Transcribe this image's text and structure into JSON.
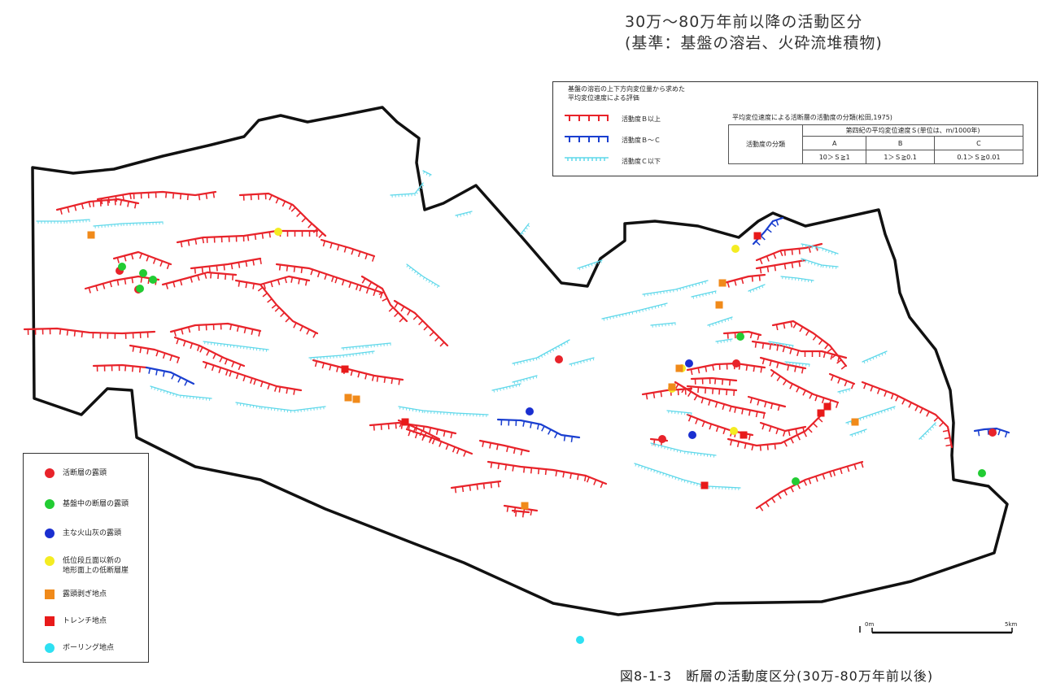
{
  "title": {
    "line1": "30万～80万年前以降の活動区分",
    "line2": "(基準：基盤の溶岩、火砕流堆積物)"
  },
  "top_legend": {
    "heading_line1": "基盤の溶岩の上下方向変位量から求めた",
    "heading_line2": "平均変位速度による評価",
    "items": [
      {
        "label": "活動度Ｂ以上",
        "color": "#e8232a"
      },
      {
        "label": "活動度Ｂ～Ｃ",
        "color": "#1a3fd0"
      },
      {
        "label": "活動度Ｃ以下",
        "color": "#5fd8ea"
      }
    ],
    "classification": {
      "title": "平均変位速度による活断層の活動度の分類(松田,1975)",
      "row_header": "活動度の分類",
      "col_header": "第四紀の平均変位速度Ｓ(単位は、m/1000年)",
      "classes": [
        {
          "name": "A",
          "range": "10＞Ｓ≧1"
        },
        {
          "name": "B",
          "range": "1＞Ｓ≧0.1"
        },
        {
          "name": "C",
          "range": "0.1＞Ｓ≧0.01"
        }
      ]
    }
  },
  "bottom_legend": {
    "items": [
      {
        "label": "活断層の露頭",
        "color": "#e8232a",
        "shape": "circle"
      },
      {
        "label": "基盤中の断層の露頭",
        "color": "#22cc33",
        "shape": "circle"
      },
      {
        "label": "主な火山灰の露頭",
        "color": "#1a2fd0",
        "shape": "circle"
      },
      {
        "label": "低位段丘面以新の\n地形面上の低断層崖",
        "color": "#f4ec22",
        "shape": "circle"
      },
      {
        "label": "露頭剥ぎ地点",
        "color": "#f08a1a",
        "shape": "square"
      },
      {
        "label": "トレンチ地点",
        "color": "#e81a1a",
        "shape": "square"
      },
      {
        "label": "ボーリング地点",
        "color": "#2ee0f2",
        "shape": "circle"
      }
    ]
  },
  "scale_bar": {
    "start_label": "0m",
    "end_label": "5km"
  },
  "caption": "図8-1-3　断層の活動度区分(30万-80万年前以後)",
  "colors": {
    "active_b_plus": "#e8232a",
    "active_b_c": "#1a3fd0",
    "active_c_minus": "#5fd8ea",
    "boundary": "#111111"
  }
}
